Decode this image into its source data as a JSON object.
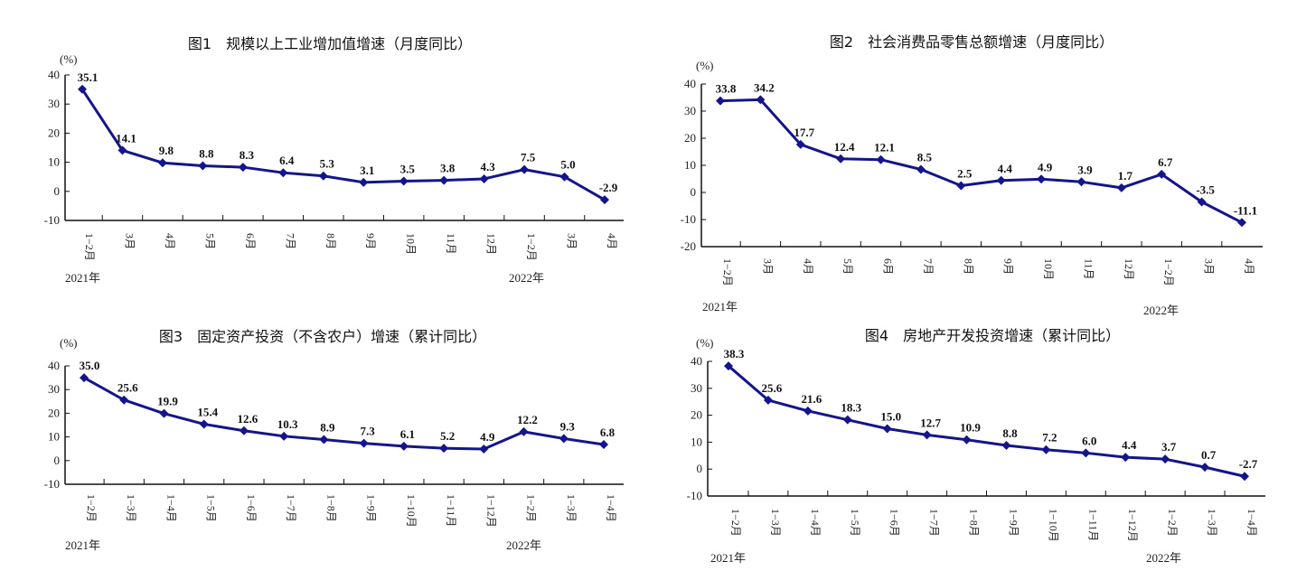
{
  "chart_data": [
    {
      "type": "line",
      "title": "图1　规模以上工业增加值增速（月度同比）",
      "ylabel": "(%)",
      "ylim": [
        -10,
        40
      ],
      "yticks": [
        -10,
        0,
        10,
        20,
        30,
        40
      ],
      "categories": [
        "1−2月",
        "3月",
        "4月",
        "5月",
        "6月",
        "7月",
        "8月",
        "9月",
        "10月",
        "11月",
        "12月",
        "1−2月",
        "3月",
        "4月"
      ],
      "year_labels": [
        "2021年",
        "2022年"
      ],
      "values": [
        35.1,
        14.1,
        9.8,
        8.8,
        8.3,
        6.4,
        5.3,
        3.1,
        3.5,
        3.8,
        4.3,
        7.5,
        5.0,
        -2.9
      ],
      "data_labels": [
        "35.1",
        "14.1",
        "9.8",
        "8.8",
        "8.3",
        "6.4",
        "5.3",
        "3.1",
        "3.5",
        "3.8",
        "4.3",
        "7.5",
        "5.0",
        "-2.9"
      ],
      "color": "#14148c",
      "grid": false
    },
    {
      "type": "line",
      "title": "图2　社会消费品零售总额增速（月度同比）",
      "ylabel": "(%)",
      "ylim": [
        -20,
        40
      ],
      "yticks": [
        -20,
        -10,
        0,
        10,
        20,
        30,
        40
      ],
      "categories": [
        "1−2月",
        "3月",
        "4月",
        "5月",
        "6月",
        "7月",
        "8月",
        "9月",
        "10月",
        "11月",
        "12月",
        "1−2月",
        "3月",
        "4月"
      ],
      "year_labels": [
        "2021年",
        "2022年"
      ],
      "values": [
        33.8,
        34.2,
        17.7,
        12.4,
        12.1,
        8.5,
        2.5,
        4.4,
        4.9,
        3.9,
        1.7,
        6.7,
        -3.5,
        -11.1
      ],
      "data_labels": [
        "33.8",
        "34.2",
        "17.7",
        "12.4",
        "12.1",
        "8.5",
        "2.5",
        "4.4",
        "4.9",
        "3.9",
        "1.7",
        "6.7",
        "-3.5",
        "-11.1"
      ],
      "color": "#14148c",
      "grid": false
    },
    {
      "type": "line",
      "title": "图3　固定资产投资（不含农户）增速（累计同比）",
      "ylabel": "(%)",
      "ylim": [
        -10,
        40
      ],
      "yticks": [
        -10,
        0,
        10,
        20,
        30,
        40
      ],
      "categories": [
        "1−2月",
        "1−3月",
        "1−4月",
        "1−5月",
        "1−6月",
        "1−7月",
        "1−8月",
        "1−9月",
        "1−10月",
        "1−11月",
        "1−12月",
        "1−2月",
        "1−3月",
        "1−4月"
      ],
      "year_labels": [
        "2021年",
        "2022年"
      ],
      "values": [
        35.0,
        25.6,
        19.9,
        15.4,
        12.6,
        10.3,
        8.9,
        7.3,
        6.1,
        5.2,
        4.9,
        12.2,
        9.3,
        6.8
      ],
      "data_labels": [
        "35.0",
        "25.6",
        "19.9",
        "15.4",
        "12.6",
        "10.3",
        "8.9",
        "7.3",
        "6.1",
        "5.2",
        "4.9",
        "12.2",
        "9.3",
        "6.8"
      ],
      "color": "#14148c",
      "grid": false
    },
    {
      "type": "line",
      "title": "图4　房地产开发投资增速（累计同比）",
      "ylabel": "(%)",
      "ylim": [
        -10,
        40
      ],
      "yticks": [
        -10,
        0,
        10,
        20,
        30,
        40
      ],
      "categories": [
        "1−2月",
        "1−3月",
        "1−4月",
        "1−5月",
        "1−6月",
        "1−7月",
        "1−8月",
        "1−9月",
        "1−10月",
        "1−11月",
        "1−12月",
        "1−2月",
        "1−3月",
        "1−4月"
      ],
      "year_labels": [
        "2021年",
        "2022年"
      ],
      "values": [
        38.3,
        25.6,
        21.6,
        18.3,
        15.0,
        12.7,
        10.9,
        8.8,
        7.2,
        6.0,
        4.4,
        3.7,
        0.7,
        -2.7
      ],
      "data_labels": [
        "38.3",
        "25.6",
        "21.6",
        "18.3",
        "15.0",
        "12.7",
        "10.9",
        "8.8",
        "7.2",
        "6.0",
        "4.4",
        "3.7",
        "0.7",
        "-2.7"
      ],
      "color": "#14148c",
      "grid": false
    }
  ]
}
